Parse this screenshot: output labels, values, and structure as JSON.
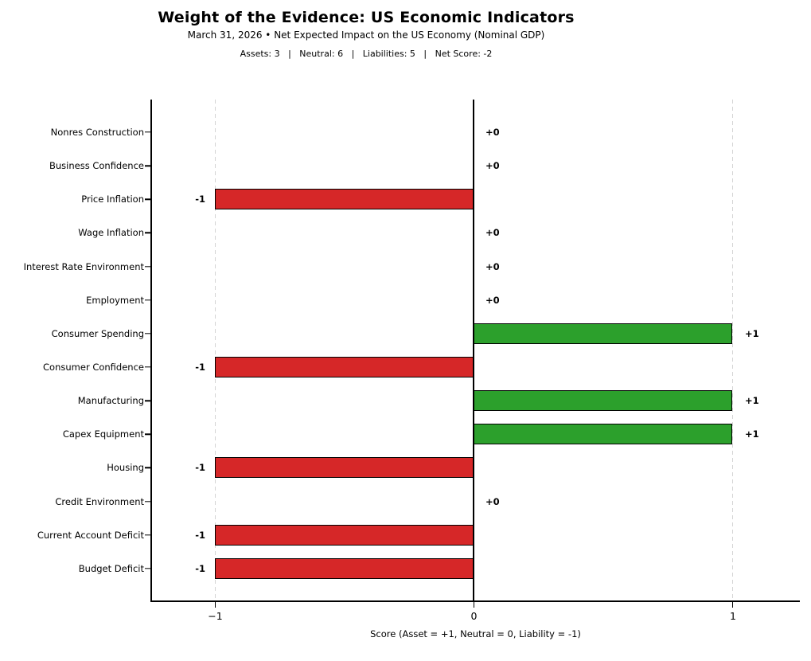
{
  "header": {
    "title": "Weight of the Evidence: US Economic Indicators",
    "subtitle": "March 31, 2026 • Net Expected Impact on the US Economy (Nominal GDP)",
    "stats_line": "Assets: 3   |   Neutral: 6   |   Liabilities: 5   |   Net Score: -2",
    "assets_count": 3,
    "neutral_count": 6,
    "liabilities_count": 5,
    "net_score": -2
  },
  "chart_data": {
    "type": "bar",
    "orientation": "horizontal",
    "title": "Weight of the Evidence: US Economic Indicators",
    "categories": [
      "Nonres Construction",
      "Business Confidence",
      "Price Inflation",
      "Wage Inflation",
      "Interest Rate Environment",
      "Employment",
      "Consumer Spending",
      "Consumer Confidence",
      "Manufacturing",
      "Capex Equipment",
      "Housing",
      "Credit Environment",
      "Current Account Deficit",
      "Budget Deficit"
    ],
    "values": [
      0,
      0,
      -1,
      0,
      0,
      0,
      1,
      -1,
      1,
      1,
      -1,
      0,
      -1,
      -1
    ],
    "rows": [
      {
        "label": "Nonres Construction",
        "value": 0,
        "display": "+0"
      },
      {
        "label": "Business Confidence",
        "value": 0,
        "display": "+0"
      },
      {
        "label": "Price Inflation",
        "value": -1,
        "display": "-1"
      },
      {
        "label": "Wage Inflation",
        "value": 0,
        "display": "+0"
      },
      {
        "label": "Interest Rate Environment",
        "value": 0,
        "display": "+0"
      },
      {
        "label": "Employment",
        "value": 0,
        "display": "+0"
      },
      {
        "label": "Consumer Spending",
        "value": 1,
        "display": "+1"
      },
      {
        "label": "Consumer Confidence",
        "value": -1,
        "display": "-1"
      },
      {
        "label": "Manufacturing",
        "value": 1,
        "display": "+1"
      },
      {
        "label": "Capex Equipment",
        "value": 1,
        "display": "+1"
      },
      {
        "label": "Housing",
        "value": -1,
        "display": "-1"
      },
      {
        "label": "Credit Environment",
        "value": 0,
        "display": "+0"
      },
      {
        "label": "Current Account Deficit",
        "value": -1,
        "display": "-1"
      },
      {
        "label": "Budget Deficit",
        "value": -1,
        "display": "-1"
      }
    ],
    "xlabel": "Score (Asset = +1, Neutral = 0, Liability = -1)",
    "xticks": [
      -1,
      0,
      1
    ],
    "xtick_labels": [
      "−1",
      "0",
      "1"
    ],
    "xlim": [
      -1.25,
      1.26
    ],
    "grid": "dashed vertical gridlines at -1, 0, +1; solid black zero baseline",
    "legend": "none",
    "colors": {
      "asset_bar": "#2ca02c",
      "liability_bar": "#d62728",
      "bar_edge": "#000000",
      "gridline": "#d4d4d4",
      "zero_line": "#000000",
      "text": "#000000",
      "background": "#ffffff"
    }
  }
}
